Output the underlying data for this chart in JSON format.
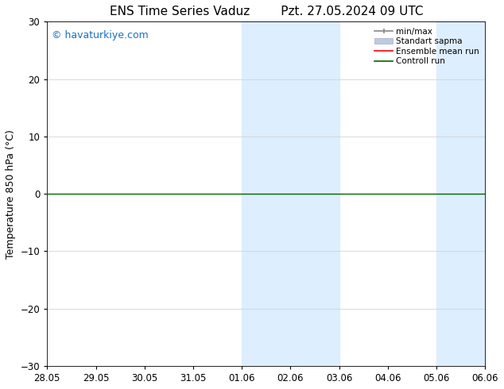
{
  "title_left": "ENS Time Series Vaduz",
  "title_right": "Pzt. 27.05.2024 09 UTC",
  "ylabel": "Temperature 850 hPa (°C)",
  "watermark": "© havaturkiye.com",
  "watermark_color": "#1a6fc4",
  "ylim": [
    -30,
    30
  ],
  "yticks": [
    -30,
    -20,
    -10,
    0,
    10,
    20,
    30
  ],
  "xtick_labels": [
    "28.05",
    "29.05",
    "30.05",
    "31.05",
    "01.06",
    "02.06",
    "03.06",
    "04.06",
    "05.06",
    "06.06"
  ],
  "x_values": [
    0,
    1,
    2,
    3,
    4,
    5,
    6,
    7,
    8,
    9
  ],
  "zero_line_y": 0.0,
  "zero_line_color": "#006600",
  "shaded_regions": [
    {
      "xmin": 4,
      "xmax": 5,
      "color": "#ddeeff",
      "alpha": 1.0
    },
    {
      "xmin": 5,
      "xmax": 6,
      "color": "#ddeeff",
      "alpha": 1.0
    },
    {
      "xmin": 8,
      "xmax": 9,
      "color": "#ddeeff",
      "alpha": 1.0
    }
  ],
  "legend_labels": [
    "min/max",
    "Standart sapma",
    "Ensemble mean run",
    "Controll run"
  ],
  "legend_colors": [
    "#aaaaaa",
    "#bbccdd",
    "#ff0000",
    "#006600"
  ],
  "bg_color": "#ffffff",
  "grid_color": "#cccccc",
  "title_fontsize": 11,
  "label_fontsize": 9,
  "tick_fontsize": 8.5,
  "watermark_fontsize": 9
}
